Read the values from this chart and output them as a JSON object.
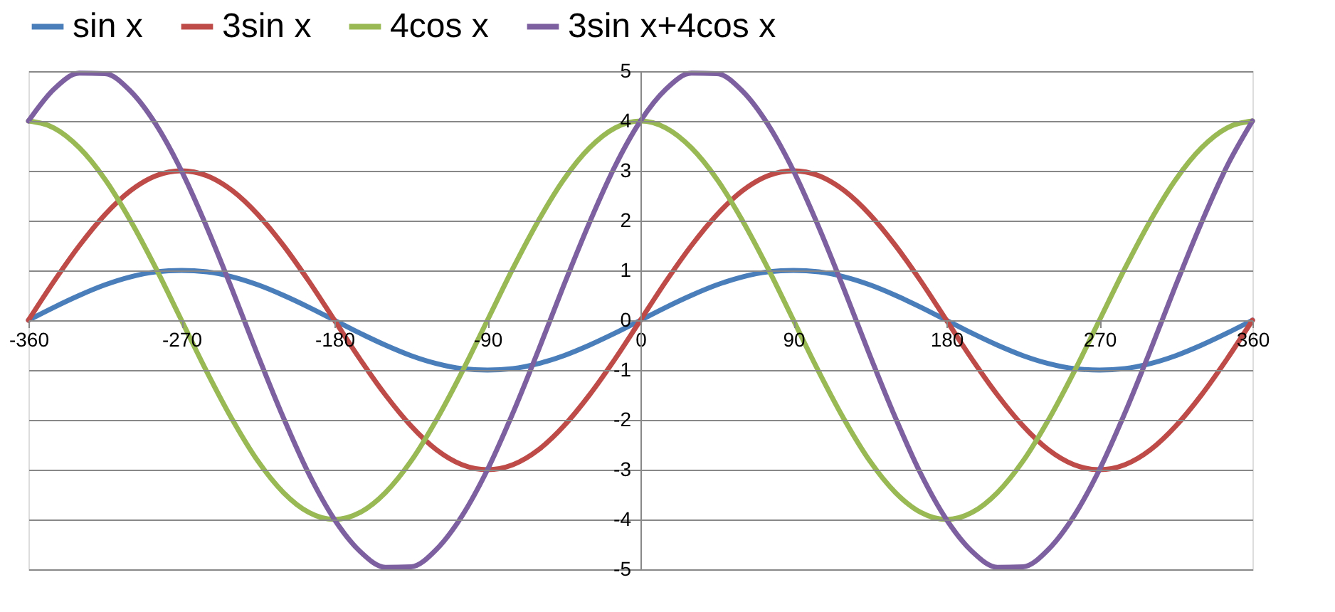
{
  "chart_data": {
    "type": "line",
    "x": [
      -360,
      -345,
      -330,
      -315,
      -300,
      -285,
      -270,
      -255,
      -240,
      -225,
      -210,
      -195,
      -180,
      -165,
      -150,
      -135,
      -120,
      -105,
      -90,
      -75,
      -60,
      -45,
      -30,
      -15,
      0,
      15,
      30,
      45,
      60,
      75,
      90,
      105,
      120,
      135,
      150,
      165,
      180,
      195,
      210,
      225,
      240,
      255,
      270,
      285,
      300,
      315,
      330,
      345,
      360
    ],
    "series": [
      {
        "name": "sin x",
        "color": "#4a7ebb",
        "values": [
          0,
          0.26,
          0.5,
          0.71,
          0.87,
          0.97,
          1,
          0.97,
          0.87,
          0.71,
          0.5,
          0.26,
          0,
          -0.26,
          -0.5,
          -0.71,
          -0.87,
          -0.97,
          -1,
          -0.97,
          -0.87,
          -0.71,
          -0.5,
          -0.26,
          0,
          0.26,
          0.5,
          0.71,
          0.87,
          0.97,
          1,
          0.97,
          0.87,
          0.71,
          0.5,
          0.26,
          0,
          -0.26,
          -0.5,
          -0.71,
          -0.87,
          -0.97,
          -1,
          -0.97,
          -0.87,
          -0.71,
          -0.5,
          -0.26,
          0
        ]
      },
      {
        "name": "3sin x",
        "color": "#be4b48",
        "values": [
          0,
          0.78,
          1.5,
          2.12,
          2.6,
          2.9,
          3,
          2.9,
          2.6,
          2.12,
          1.5,
          0.78,
          0,
          -0.78,
          -1.5,
          -2.12,
          -2.6,
          -2.9,
          -3,
          -2.9,
          -2.6,
          -2.12,
          -1.5,
          -0.78,
          0,
          0.78,
          1.5,
          2.12,
          2.6,
          2.9,
          3,
          2.9,
          2.6,
          2.12,
          1.5,
          0.78,
          0,
          -0.78,
          -1.5,
          -2.12,
          -2.6,
          -2.9,
          -3,
          -2.9,
          -2.6,
          -2.12,
          -1.5,
          -0.78,
          0
        ]
      },
      {
        "name": "4cos x",
        "color": "#98b954",
        "values": [
          4,
          3.86,
          3.46,
          2.83,
          2,
          1.04,
          0,
          -1.04,
          -2,
          -2.83,
          -3.46,
          -3.86,
          -4,
          -3.86,
          -3.46,
          -2.83,
          -2,
          -1.04,
          0,
          1.04,
          2,
          2.83,
          3.46,
          3.86,
          4,
          3.86,
          3.46,
          2.83,
          2,
          1.04,
          0,
          -1.04,
          -2,
          -2.83,
          -3.46,
          -3.86,
          -4,
          -3.86,
          -3.46,
          -2.83,
          -2,
          -1.04,
          0,
          1.04,
          2,
          2.83,
          3.46,
          3.86,
          4
        ]
      },
      {
        "name": "3sin x+4cos x",
        "color": "#7d60a0",
        "values": [
          4,
          4.64,
          4.96,
          4.95,
          4.6,
          3.93,
          3,
          1.86,
          0.6,
          -0.71,
          -1.96,
          -3.09,
          -4,
          -4.64,
          -4.96,
          -4.95,
          -4.6,
          -3.93,
          -3,
          -1.86,
          -0.6,
          0.71,
          1.96,
          3.09,
          4,
          4.64,
          4.96,
          4.95,
          4.6,
          3.93,
          3,
          1.86,
          0.6,
          -0.71,
          -1.96,
          -3.09,
          -4,
          -4.64,
          -4.96,
          -4.95,
          -4.6,
          -3.93,
          -3,
          -1.86,
          -0.6,
          0.71,
          1.96,
          3.09,
          4
        ]
      }
    ],
    "xlim": [
      -360,
      360
    ],
    "xticks": [
      -360,
      -270,
      -180,
      -90,
      0,
      90,
      180,
      270,
      360
    ],
    "ylim": [
      -5,
      5
    ],
    "yticks": [
      -5,
      -4,
      -3,
      -2,
      -1,
      0,
      1,
      2,
      3,
      4,
      5
    ],
    "grid": "y",
    "legend": "top",
    "marker": "none",
    "line_style": "solid"
  }
}
